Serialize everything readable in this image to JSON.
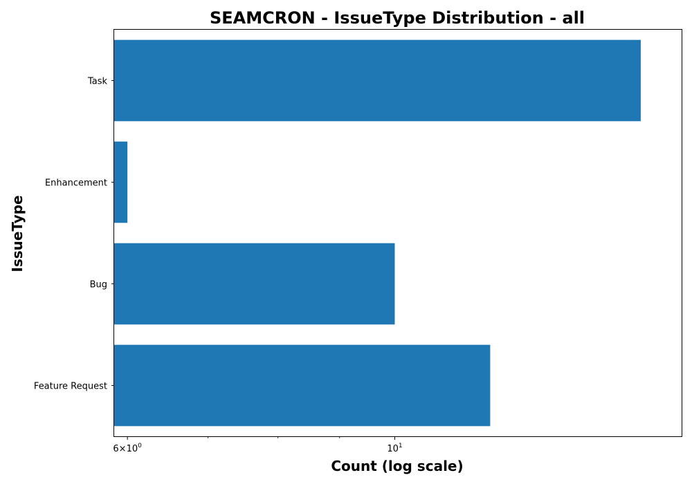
{
  "chart_data": {
    "type": "bar",
    "orientation": "horizontal",
    "title": "SEAMCRON - IssueType Distribution - all",
    "xlabel": "Count (log scale)",
    "ylabel": "IssueType",
    "x_scale": "log",
    "xlim": [
      5.85,
      17.3
    ],
    "categories": [
      "Feature Request",
      "Bug",
      "Enhancement",
      "Task"
    ],
    "values": [
      12,
      10,
      6,
      16
    ],
    "bar_color": "#1f77b4",
    "x_ticks": [
      {
        "value": 6,
        "base": "6×10",
        "exp": "0"
      },
      {
        "value": 10,
        "base": "10",
        "exp": "1"
      }
    ],
    "x_minor_ticks": [
      7,
      8,
      9
    ],
    "grid": false,
    "legend": "none"
  }
}
